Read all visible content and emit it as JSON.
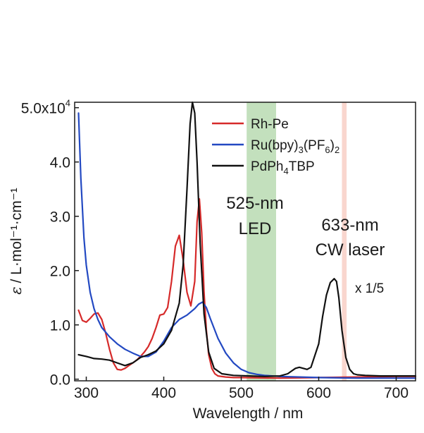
{
  "chart_data": {
    "type": "line",
    "title": "",
    "xlabel": "Wavelength / nm",
    "ylabel_symbol": "ε",
    "ylabel_units": "/ L·mol⁻¹·cm⁻¹",
    "xlim": [
      285,
      725
    ],
    "ylim": [
      -0.03,
      5.1
    ],
    "x_ticks": [
      300,
      400,
      500,
      600,
      700
    ],
    "y_ticks": [
      {
        "value": 0.0,
        "label": "0.0"
      },
      {
        "value": 1.0,
        "label": "1.0"
      },
      {
        "value": 2.0,
        "label": "2.0"
      },
      {
        "value": 3.0,
        "label": "3.0"
      },
      {
        "value": 4.0,
        "label": "4.0"
      },
      {
        "value": 5.0,
        "label_base": "5.0x10",
        "label_exp": "4"
      }
    ],
    "bands": [
      {
        "name": "LED band",
        "from": 507,
        "to": 545,
        "color": "#b9dbb1",
        "label_line1": "525-nm",
        "label_line2": "LED"
      },
      {
        "name": "Laser band",
        "from": 630,
        "to": 636,
        "color": "#f8cfc6",
        "label_line1": "633-nm",
        "label_line2": "CW laser"
      }
    ],
    "annotations": [
      {
        "text": "x 1/5",
        "near_x": 625
      }
    ],
    "series": [
      {
        "name": "Rh-Pe",
        "color": "#d62a2a",
        "x": [
          290,
          295,
          300,
          305,
          310,
          315,
          320,
          325,
          330,
          335,
          340,
          345,
          350,
          355,
          360,
          365,
          370,
          375,
          380,
          385,
          390,
          395,
          400,
          405,
          410,
          415,
          420,
          425,
          430,
          435,
          440,
          443,
          446,
          449,
          452,
          455,
          458,
          462,
          466,
          470,
          480,
          490,
          500,
          550,
          600,
          650,
          700,
          725
        ],
        "y": [
          1.27,
          1.08,
          1.05,
          1.12,
          1.2,
          1.22,
          1.1,
          0.85,
          0.55,
          0.3,
          0.18,
          0.17,
          0.2,
          0.25,
          0.3,
          0.35,
          0.42,
          0.5,
          0.6,
          0.75,
          0.95,
          1.18,
          1.2,
          1.32,
          1.8,
          2.45,
          2.65,
          2.2,
          1.6,
          1.35,
          1.8,
          2.9,
          3.32,
          2.7,
          1.6,
          0.9,
          0.45,
          0.2,
          0.1,
          0.06,
          0.04,
          0.03,
          0.03,
          0.02,
          0.03,
          0.04,
          0.05,
          0.05
        ]
      },
      {
        "name": "Ru(bpy)3(PF6)2",
        "label_parts": [
          "Ru(bpy)",
          "3",
          "(PF",
          "6",
          ")",
          "2"
        ],
        "color": "#2349c2",
        "x": [
          290,
          293,
          297,
          300,
          305,
          310,
          315,
          320,
          330,
          340,
          350,
          360,
          370,
          380,
          390,
          400,
          410,
          420,
          430,
          440,
          445,
          450,
          455,
          460,
          470,
          480,
          490,
          500,
          510,
          520,
          530,
          550,
          600,
          650,
          700,
          725
        ],
        "y": [
          4.9,
          3.7,
          2.6,
          2.1,
          1.6,
          1.3,
          1.1,
          0.95,
          0.78,
          0.65,
          0.55,
          0.48,
          0.42,
          0.42,
          0.5,
          0.7,
          0.95,
          1.1,
          1.18,
          1.3,
          1.38,
          1.42,
          1.32,
          1.12,
          0.75,
          0.48,
          0.3,
          0.18,
          0.12,
          0.09,
          0.07,
          0.05,
          0.03,
          0.02,
          0.02,
          0.02
        ]
      },
      {
        "name": "PdPh4TBP",
        "label_parts": [
          "PdPh",
          "4",
          "TBP"
        ],
        "color": "#111111",
        "x": [
          290,
          300,
          310,
          320,
          330,
          340,
          350,
          360,
          370,
          380,
          390,
          400,
          410,
          420,
          425,
          430,
          434,
          437,
          440,
          443,
          447,
          452,
          458,
          465,
          475,
          490,
          510,
          530,
          550,
          560,
          565,
          570,
          575,
          580,
          585,
          590,
          600,
          605,
          610,
          615,
          620,
          623,
          626,
          630,
          635,
          640,
          645,
          650,
          660,
          680,
          700,
          725
        ],
        "y": [
          0.45,
          0.42,
          0.38,
          0.37,
          0.35,
          0.3,
          0.25,
          0.3,
          0.4,
          0.45,
          0.52,
          0.65,
          0.9,
          1.4,
          2.1,
          3.5,
          4.7,
          5.1,
          4.9,
          4.0,
          2.5,
          1.2,
          0.5,
          0.2,
          0.1,
          0.07,
          0.06,
          0.05,
          0.06,
          0.1,
          0.15,
          0.2,
          0.22,
          0.2,
          0.18,
          0.22,
          0.65,
          1.15,
          1.55,
          1.78,
          1.85,
          1.8,
          1.5,
          0.9,
          0.4,
          0.18,
          0.1,
          0.08,
          0.07,
          0.06,
          0.06,
          0.06
        ]
      }
    ],
    "legend": {
      "placement": "top-right"
    }
  }
}
